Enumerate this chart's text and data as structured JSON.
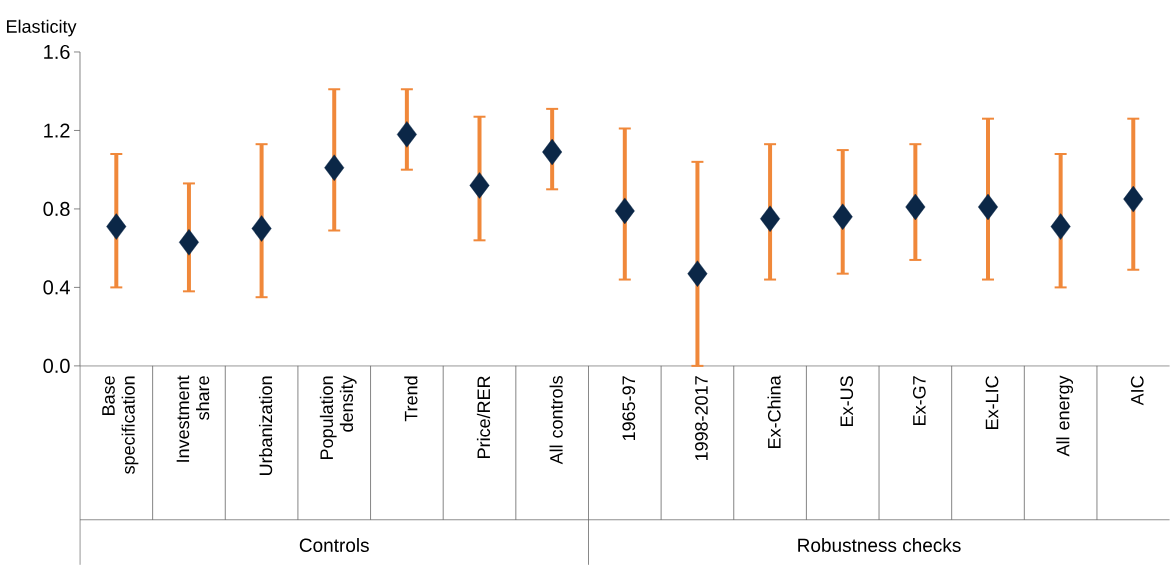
{
  "chart_data": {
    "type": "scatter",
    "ylabel": "Elasticity",
    "categories": [
      "Base specification",
      "Investment share",
      "Urbanization",
      "Population density",
      "Trend",
      "Price/RER",
      "All controls",
      "1965-97",
      "1998-2017",
      "Ex-China",
      "Ex-US",
      "Ex-G7",
      "Ex-LIC",
      "All energy",
      "AIC"
    ],
    "values": [
      0.71,
      0.63,
      0.7,
      1.01,
      1.18,
      0.92,
      1.09,
      0.79,
      0.47,
      0.75,
      0.76,
      0.81,
      0.81,
      0.71,
      0.85
    ],
    "errors": [
      [
        0.4,
        1.08
      ],
      [
        0.38,
        0.93
      ],
      [
        0.35,
        1.13
      ],
      [
        0.69,
        1.41
      ],
      [
        1.0,
        1.41
      ],
      [
        0.64,
        1.27
      ],
      [
        0.9,
        1.31
      ],
      [
        0.44,
        1.21
      ],
      [
        0.0,
        1.04
      ],
      [
        0.44,
        1.13
      ],
      [
        0.47,
        1.1
      ],
      [
        0.54,
        1.13
      ],
      [
        0.44,
        1.26
      ],
      [
        0.4,
        1.08
      ],
      [
        0.49,
        1.26
      ]
    ],
    "color": "#0b2747",
    "marker": "diamond",
    "grid": false,
    "ylim": [
      0,
      1.6
    ],
    "yticks": [
      {
        "value": 0,
        "label": "0.0"
      },
      {
        "value": 0.4,
        "label": "0.4"
      },
      {
        "value": 0.8,
        "label": "0.8"
      },
      {
        "value": 1.2,
        "label": "1.2"
      },
      {
        "value": 1.6,
        "label": "1.6"
      }
    ],
    "annotations": [
      "Controls",
      "Robustness checks"
    ]
  }
}
